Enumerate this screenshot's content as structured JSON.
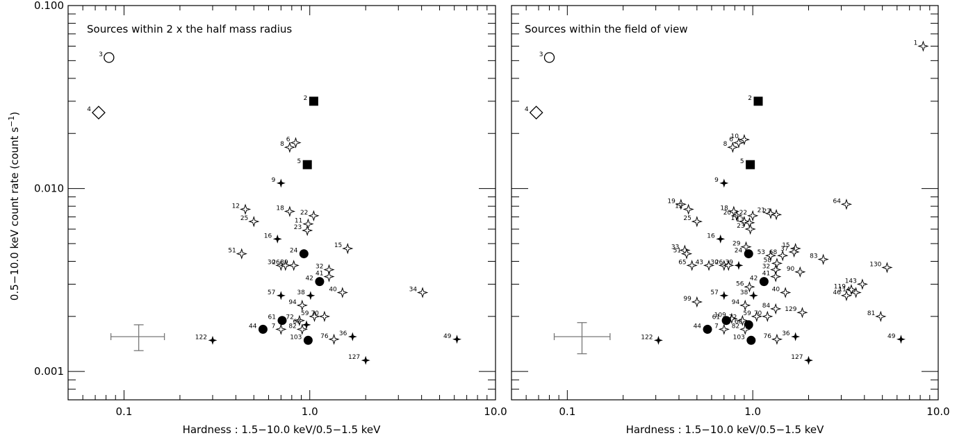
{
  "chart_data": {
    "type": "scatter",
    "xlabel": "Hardness : 1.5−10.0 keV/0.5−1.5 keV",
    "ylabel": "0.5−10.0 keV count rate (count s",
    "ylabel_sup": "−1",
    "ylabel_close": ")",
    "x_scale": "log",
    "y_scale": "log",
    "xlim": [
      0.05,
      10.0
    ],
    "ylim": [
      0.0007,
      0.1
    ],
    "y_ticks": [
      {
        "value": 0.1,
        "label": "0.100"
      },
      {
        "value": 0.01,
        "label": "0.010"
      },
      {
        "value": 0.001,
        "label": "0.001"
      }
    ],
    "x_ticks_left": [
      {
        "value": 0.1,
        "label": "0.1"
      },
      {
        "value": 1.0,
        "label": "1.0"
      },
      {
        "value": 10.0,
        "label": "10.0"
      }
    ],
    "x_ticks_right": [
      {
        "value": 0.1,
        "label": "0.1"
      },
      {
        "value": 1.0,
        "label": "1.0"
      },
      {
        "value": 10.0,
        "label": "10.0"
      }
    ],
    "panels": [
      {
        "title": "Sources within 2 x the half mass radius",
        "error_bar": {
          "x": 0.12,
          "y": 0.00155,
          "x_low": 0.085,
          "x_high": 0.165,
          "y_low": 0.0013,
          "y_high": 0.0018
        },
        "points": [
          {
            "id": "3",
            "x": 0.083,
            "y": 0.052,
            "marker": "open-circle"
          },
          {
            "id": "4",
            "x": 0.073,
            "y": 0.026,
            "marker": "open-diamond"
          },
          {
            "id": "2",
            "x": 1.05,
            "y": 0.03,
            "marker": "filled-square"
          },
          {
            "id": "5",
            "x": 0.97,
            "y": 0.0135,
            "marker": "filled-square"
          },
          {
            "id": "6",
            "x": 0.84,
            "y": 0.0178,
            "marker": "open-star"
          },
          {
            "id": "8",
            "x": 0.78,
            "y": 0.0168,
            "marker": "open-star"
          },
          {
            "id": "9",
            "x": 0.7,
            "y": 0.0107,
            "marker": "filled-star"
          },
          {
            "id": "12",
            "x": 0.45,
            "y": 0.0077,
            "marker": "open-star"
          },
          {
            "id": "18",
            "x": 0.78,
            "y": 0.0075,
            "marker": "open-star"
          },
          {
            "id": "22",
            "x": 1.05,
            "y": 0.0071,
            "marker": "open-star"
          },
          {
            "id": "25",
            "x": 0.5,
            "y": 0.0066,
            "marker": "open-star"
          },
          {
            "id": "11",
            "x": 0.98,
            "y": 0.0064,
            "marker": "open-star"
          },
          {
            "id": "23",
            "x": 0.97,
            "y": 0.0059,
            "marker": "open-star"
          },
          {
            "id": "16",
            "x": 0.67,
            "y": 0.0053,
            "marker": "filled-star"
          },
          {
            "id": "15",
            "x": 1.6,
            "y": 0.0047,
            "marker": "open-star"
          },
          {
            "id": "24",
            "x": 0.93,
            "y": 0.0044,
            "marker": "filled-circle"
          },
          {
            "id": "51",
            "x": 0.43,
            "y": 0.0044,
            "marker": "open-star"
          },
          {
            "id": "30",
            "x": 0.7,
            "y": 0.0038,
            "marker": "open-star"
          },
          {
            "id": "26",
            "x": 0.74,
            "y": 0.0038,
            "marker": "open-star"
          },
          {
            "id": "39",
            "x": 0.82,
            "y": 0.0038,
            "marker": "open-star"
          },
          {
            "id": "32",
            "x": 1.27,
            "y": 0.0036,
            "marker": "open-star"
          },
          {
            "id": "41",
            "x": 1.27,
            "y": 0.0033,
            "marker": "open-star"
          },
          {
            "id": "42",
            "x": 1.13,
            "y": 0.0031,
            "marker": "filled-circle"
          },
          {
            "id": "40",
            "x": 1.5,
            "y": 0.0027,
            "marker": "open-star"
          },
          {
            "id": "34",
            "x": 4.05,
            "y": 0.0027,
            "marker": "open-star"
          },
          {
            "id": "57",
            "x": 0.7,
            "y": 0.0026,
            "marker": "filled-star"
          },
          {
            "id": "38",
            "x": 1.01,
            "y": 0.0026,
            "marker": "filled-star"
          },
          {
            "id": "94",
            "x": 0.91,
            "y": 0.0023,
            "marker": "open-star"
          },
          {
            "id": "59",
            "x": 1.06,
            "y": 0.002,
            "marker": "open-star"
          },
          {
            "id": "70",
            "x": 1.2,
            "y": 0.002,
            "marker": "open-star"
          },
          {
            "id": "61",
            "x": 0.71,
            "y": 0.0019,
            "marker": "filled-circle"
          },
          {
            "id": "72",
            "x": 0.88,
            "y": 0.0019,
            "marker": "open-star"
          },
          {
            "id": "68",
            "x": 0.96,
            "y": 0.0018,
            "marker": "filled-star"
          },
          {
            "id": "44",
            "x": 0.56,
            "y": 0.0017,
            "marker": "filled-circle"
          },
          {
            "id": "7",
            "x": 0.7,
            "y": 0.0017,
            "marker": "open-star"
          },
          {
            "id": "82",
            "x": 0.91,
            "y": 0.0017,
            "marker": "open-star"
          },
          {
            "id": "36",
            "x": 1.7,
            "y": 0.00155,
            "marker": "filled-star"
          },
          {
            "id": "76",
            "x": 1.35,
            "y": 0.0015,
            "marker": "open-star"
          },
          {
            "id": "103",
            "x": 0.98,
            "y": 0.00148,
            "marker": "filled-circle"
          },
          {
            "id": "122",
            "x": 0.3,
            "y": 0.00148,
            "marker": "filled-star"
          },
          {
            "id": "49",
            "x": 6.2,
            "y": 0.0015,
            "marker": "filled-star"
          },
          {
            "id": "127",
            "x": 2.0,
            "y": 0.00115,
            "marker": "filled-star"
          }
        ]
      },
      {
        "title": "Sources within the field of view",
        "error_bar": {
          "x": 0.12,
          "y": 0.00155,
          "x_low": 0.085,
          "x_high": 0.17,
          "y_low": 0.00125,
          "y_high": 0.00185
        },
        "points": [
          {
            "id": "1",
            "x": 8.3,
            "y": 0.06,
            "marker": "open-star"
          },
          {
            "id": "3",
            "x": 0.08,
            "y": 0.052,
            "marker": "open-circle"
          },
          {
            "id": "4",
            "x": 0.068,
            "y": 0.026,
            "marker": "open-diamond"
          },
          {
            "id": "2",
            "x": 1.07,
            "y": 0.03,
            "marker": "filled-square"
          },
          {
            "id": "10",
            "x": 0.9,
            "y": 0.0185,
            "marker": "open-star"
          },
          {
            "id": "6",
            "x": 0.84,
            "y": 0.0178,
            "marker": "open-star"
          },
          {
            "id": "8",
            "x": 0.78,
            "y": 0.0168,
            "marker": "open-star"
          },
          {
            "id": "5",
            "x": 0.97,
            "y": 0.0135,
            "marker": "filled-square"
          },
          {
            "id": "9",
            "x": 0.7,
            "y": 0.0107,
            "marker": "filled-star"
          },
          {
            "id": "64",
            "x": 3.2,
            "y": 0.0082,
            "marker": "open-star"
          },
          {
            "id": "19",
            "x": 0.41,
            "y": 0.0082,
            "marker": "open-star"
          },
          {
            "id": "12",
            "x": 0.45,
            "y": 0.0077,
            "marker": "open-star"
          },
          {
            "id": "18",
            "x": 0.79,
            "y": 0.0075,
            "marker": "open-star"
          },
          {
            "id": "21",
            "x": 1.25,
            "y": 0.0073,
            "marker": "open-star"
          },
          {
            "id": "27",
            "x": 1.34,
            "y": 0.0072,
            "marker": "open-star"
          },
          {
            "id": "20",
            "x": 0.82,
            "y": 0.0071,
            "marker": "open-star"
          },
          {
            "id": "22",
            "x": 1.0,
            "y": 0.0071,
            "marker": "open-star"
          },
          {
            "id": "17",
            "x": 0.9,
            "y": 0.0066,
            "marker": "open-star"
          },
          {
            "id": "13",
            "x": 0.96,
            "y": 0.0065,
            "marker": "open-star"
          },
          {
            "id": "25",
            "x": 0.5,
            "y": 0.0066,
            "marker": "open-star"
          },
          {
            "id": "23",
            "x": 0.97,
            "y": 0.006,
            "marker": "open-star"
          },
          {
            "id": "16",
            "x": 0.67,
            "y": 0.0053,
            "marker": "filled-star"
          },
          {
            "id": "29",
            "x": 0.92,
            "y": 0.0048,
            "marker": "open-star"
          },
          {
            "id": "15",
            "x": 1.7,
            "y": 0.0047,
            "marker": "open-star"
          },
          {
            "id": "37",
            "x": 1.67,
            "y": 0.0045,
            "marker": "open-star"
          },
          {
            "id": "33",
            "x": 0.43,
            "y": 0.0046,
            "marker": "open-star"
          },
          {
            "id": "51",
            "x": 0.44,
            "y": 0.0044,
            "marker": "open-star"
          },
          {
            "id": "24",
            "x": 0.95,
            "y": 0.0044,
            "marker": "filled-circle"
          },
          {
            "id": "53",
            "x": 1.25,
            "y": 0.0043,
            "marker": "open-star"
          },
          {
            "id": "68",
            "x": 1.45,
            "y": 0.0043,
            "marker": "open-star"
          },
          {
            "id": "83",
            "x": 2.4,
            "y": 0.0041,
            "marker": "open-star"
          },
          {
            "id": "58",
            "x": 1.35,
            "y": 0.0039,
            "marker": "open-star"
          },
          {
            "id": "65",
            "x": 0.47,
            "y": 0.0038,
            "marker": "open-star"
          },
          {
            "id": "43",
            "x": 0.58,
            "y": 0.0038,
            "marker": "open-star"
          },
          {
            "id": "30",
            "x": 0.7,
            "y": 0.0038,
            "marker": "open-star"
          },
          {
            "id": "26",
            "x": 0.74,
            "y": 0.0038,
            "marker": "open-star"
          },
          {
            "id": "39",
            "x": 0.84,
            "y": 0.0038,
            "marker": "filled-star"
          },
          {
            "id": "130",
            "x": 5.3,
            "y": 0.0037,
            "marker": "open-star"
          },
          {
            "id": "32",
            "x": 1.33,
            "y": 0.0036,
            "marker": "open-star"
          },
          {
            "id": "90",
            "x": 1.8,
            "y": 0.0035,
            "marker": "open-star"
          },
          {
            "id": "41",
            "x": 1.33,
            "y": 0.0033,
            "marker": "open-star"
          },
          {
            "id": "42",
            "x": 1.15,
            "y": 0.0031,
            "marker": "filled-circle"
          },
          {
            "id": "143",
            "x": 3.9,
            "y": 0.003,
            "marker": "open-star"
          },
          {
            "id": "56",
            "x": 0.96,
            "y": 0.0029,
            "marker": "open-star"
          },
          {
            "id": "119",
            "x": 3.4,
            "y": 0.0028,
            "marker": "open-star"
          },
          {
            "id": "114",
            "x": 3.6,
            "y": 0.0027,
            "marker": "open-star"
          },
          {
            "id": "40",
            "x": 1.5,
            "y": 0.0027,
            "marker": "open-star"
          },
          {
            "id": "46",
            "x": 3.2,
            "y": 0.0026,
            "marker": "open-star"
          },
          {
            "id": "57",
            "x": 0.7,
            "y": 0.0026,
            "marker": "filled-star"
          },
          {
            "id": "38",
            "x": 1.01,
            "y": 0.0026,
            "marker": "filled-star"
          },
          {
            "id": "99",
            "x": 0.5,
            "y": 0.0024,
            "marker": "open-star"
          },
          {
            "id": "94",
            "x": 0.91,
            "y": 0.0023,
            "marker": "open-star"
          },
          {
            "id": "84",
            "x": 1.33,
            "y": 0.0022,
            "marker": "open-star"
          },
          {
            "id": "129",
            "x": 1.85,
            "y": 0.0021,
            "marker": "open-star"
          },
          {
            "id": "59",
            "x": 1.05,
            "y": 0.002,
            "marker": "open-star"
          },
          {
            "id": "70",
            "x": 1.2,
            "y": 0.002,
            "marker": "open-star"
          },
          {
            "id": "81",
            "x": 4.9,
            "y": 0.002,
            "marker": "open-star"
          },
          {
            "id": "109",
            "x": 0.77,
            "y": 0.00195,
            "marker": "open-star"
          },
          {
            "id": "61",
            "x": 0.72,
            "y": 0.0019,
            "marker": "filled-circle"
          },
          {
            "id": "72",
            "x": 0.88,
            "y": 0.0019,
            "marker": "open-star"
          },
          {
            "id": "68",
            "x": 0.95,
            "y": 0.0018,
            "marker": "filled-circle"
          },
          {
            "id": "44",
            "x": 0.57,
            "y": 0.0017,
            "marker": "filled-circle"
          },
          {
            "id": "7",
            "x": 0.7,
            "y": 0.0017,
            "marker": "open-star"
          },
          {
            "id": "82",
            "x": 0.91,
            "y": 0.0017,
            "marker": "open-star"
          },
          {
            "id": "36",
            "x": 1.7,
            "y": 0.00155,
            "marker": "filled-star"
          },
          {
            "id": "76",
            "x": 1.35,
            "y": 0.0015,
            "marker": "open-star"
          },
          {
            "id": "103",
            "x": 0.98,
            "y": 0.00148,
            "marker": "filled-circle"
          },
          {
            "id": "122",
            "x": 0.31,
            "y": 0.00148,
            "marker": "filled-star"
          },
          {
            "id": "49",
            "x": 6.3,
            "y": 0.0015,
            "marker": "filled-star"
          },
          {
            "id": "127",
            "x": 2.0,
            "y": 0.00115,
            "marker": "filled-star"
          }
        ]
      }
    ]
  }
}
